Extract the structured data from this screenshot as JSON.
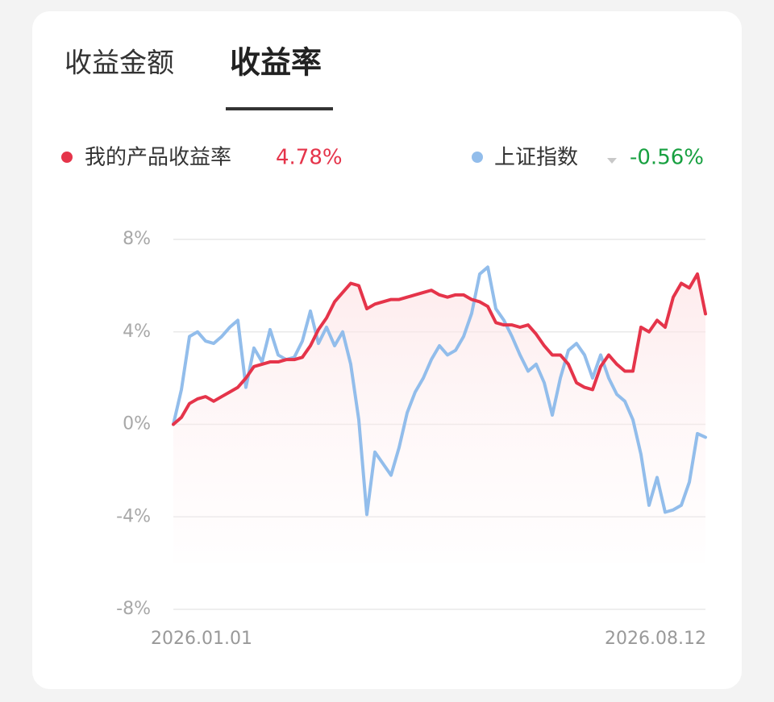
{
  "tabs": [
    "收益金额",
    "收益率"
  ],
  "chart_data": {
    "type": "line",
    "series": [
      {
        "name": "我的产品收益率",
        "color": "#e5344a",
        "values": [
          0,
          0.3,
          0.9,
          1.1,
          1.2,
          1.0,
          1.2,
          1.4,
          1.6,
          2.0,
          2.5,
          2.6,
          2.7,
          2.7,
          2.8,
          2.8,
          2.9,
          3.4,
          4.1,
          4.6,
          5.3,
          5.7,
          6.1,
          6.0,
          5.0,
          5.2,
          5.3,
          5.4,
          5.4,
          5.5,
          5.6,
          5.7,
          5.8,
          5.6,
          5.5,
          5.6,
          5.6,
          5.4,
          5.3,
          5.1,
          4.4,
          4.3,
          4.3,
          4.2,
          4.3,
          3.9,
          3.4,
          3.0,
          3.0,
          2.6,
          1.8,
          1.6,
          1.5,
          2.5,
          3.0,
          2.6,
          2.3,
          2.3,
          4.2,
          4.0,
          4.5,
          4.2,
          5.5,
          6.1,
          5.9,
          6.5,
          4.78
        ]
      },
      {
        "name": "上证指数",
        "color": "#92bdeb",
        "values": [
          0,
          1.5,
          3.8,
          4.0,
          3.6,
          3.5,
          3.8,
          4.2,
          4.5,
          1.6,
          3.3,
          2.7,
          4.1,
          3.0,
          2.8,
          2.9,
          3.6,
          4.9,
          3.5,
          4.2,
          3.4,
          4.0,
          2.6,
          0.2,
          -3.9,
          -1.2,
          -1.7,
          -2.2,
          -1.0,
          0.5,
          1.4,
          2.0,
          2.8,
          3.4,
          3.0,
          3.2,
          3.8,
          4.8,
          6.5,
          6.8,
          5.0,
          4.5,
          3.8,
          3.0,
          2.3,
          2.6,
          1.8,
          0.4,
          2.0,
          3.2,
          3.5,
          3.0,
          2.0,
          3.0,
          2.0,
          1.3,
          1.0,
          0.2,
          -1.3,
          -3.5,
          -2.3,
          -3.8,
          -3.7,
          -3.5,
          -2.5,
          -0.4,
          -0.56
        ]
      }
    ],
    "legend_values": [
      {
        "value": 4.78,
        "label": "4.78%",
        "color": "#e5344a"
      },
      {
        "value": -0.56,
        "label": "-0.56%",
        "color": "#17a040"
      }
    ],
    "categories": [
      "2026.01.01",
      null,
      null,
      null,
      null,
      null,
      null,
      null,
      null,
      null,
      null,
      null,
      null,
      null,
      null,
      null,
      null,
      null,
      null,
      null,
      null,
      null,
      null,
      null,
      null,
      null,
      null,
      null,
      null,
      null,
      null,
      null,
      null,
      null,
      null,
      null,
      null,
      null,
      null,
      null,
      null,
      null,
      null,
      null,
      null,
      null,
      null,
      null,
      null,
      null,
      null,
      null,
      null,
      null,
      null,
      null,
      null,
      null,
      null,
      null,
      null,
      null,
      null,
      null,
      null,
      null,
      "2026.08.12"
    ],
    "ylim": [
      -8,
      8
    ],
    "yticks": [
      {
        "value": 8,
        "label": "8%"
      },
      {
        "value": 4,
        "label": "4%"
      },
      {
        "value": 0,
        "label": "0%"
      },
      {
        "value": -4,
        "label": "-4%"
      },
      {
        "value": -8,
        "label": "-8%"
      }
    ],
    "grid": true
  }
}
